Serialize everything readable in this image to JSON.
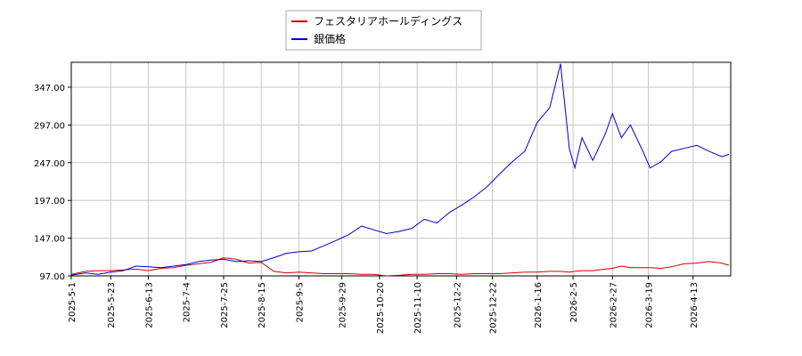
{
  "chart_data": {
    "type": "line",
    "x": [
      "2025-05-01",
      "2025-05-09",
      "2025-05-16",
      "2025-05-23",
      "2025-05-30",
      "2025-06-06",
      "2025-06-13",
      "2025-06-20",
      "2025-06-27",
      "2025-07-04",
      "2025-07-11",
      "2025-07-18",
      "2025-07-25",
      "2025-08-01",
      "2025-08-08",
      "2025-08-15",
      "2025-08-22",
      "2025-08-29",
      "2025-09-05",
      "2025-09-12",
      "2025-09-19",
      "2025-09-26",
      "2025-10-03",
      "2025-10-10",
      "2025-10-17",
      "2025-10-24",
      "2025-10-31",
      "2025-11-07",
      "2025-11-14",
      "2025-11-21",
      "2025-11-28",
      "2025-12-05",
      "2025-12-12",
      "2025-12-19",
      "2025-12-26",
      "2026-01-02",
      "2026-01-09",
      "2026-01-16",
      "2026-01-23",
      "2026-01-29",
      "2026-02-03",
      "2026-02-06",
      "2026-02-10",
      "2026-02-16",
      "2026-02-23",
      "2026-02-27",
      "2026-03-04",
      "2026-03-09",
      "2026-03-16",
      "2026-03-20",
      "2026-03-26",
      "2026-04-01",
      "2026-04-08",
      "2026-04-15",
      "2026-04-22",
      "2026-04-29",
      "2026-05-03"
    ],
    "series": [
      {
        "name": "フェスタリアホールディングス",
        "color": "#cc0000",
        "values": [
          99,
          103,
          104,
          104,
          105,
          106,
          104,
          107,
          108,
          111,
          113,
          115,
          121,
          119,
          114,
          115,
          103,
          101,
          102,
          101,
          100,
          100,
          100,
          99,
          99,
          97,
          98,
          99,
          99,
          100,
          100,
          99,
          100,
          100,
          100,
          101,
          102,
          102,
          103,
          103,
          102,
          103,
          104,
          104,
          106,
          107,
          110,
          108,
          108,
          108,
          107,
          109,
          113,
          114,
          116,
          114,
          111
        ]
      },
      {
        "name": "銀価格",
        "color": "#0000cc",
        "values": [
          98,
          101,
          99,
          102,
          104,
          110,
          109,
          108,
          110,
          112,
          116,
          118,
          119,
          116,
          117,
          116,
          121,
          127,
          129,
          130,
          137,
          144,
          152,
          163,
          158,
          153,
          156,
          160,
          172,
          167,
          181,
          191,
          202,
          215,
          232,
          248,
          262,
          300,
          320,
          378,
          265,
          240,
          280,
          250,
          285,
          312,
          280,
          297,
          262,
          240,
          248,
          262,
          266,
          270,
          262,
          255,
          258
        ]
      }
    ],
    "xlim": [
      "2025-05-01",
      "2026-05-04"
    ],
    "xticks": [
      {
        "value": "2025-05-01",
        "label": "2025-5-1"
      },
      {
        "value": "2025-05-23",
        "label": "2025-5-23"
      },
      {
        "value": "2025-06-13",
        "label": "2025-6-13"
      },
      {
        "value": "2025-07-04",
        "label": "2025-7-4"
      },
      {
        "value": "2025-07-25",
        "label": "2025-7-25"
      },
      {
        "value": "2025-08-15",
        "label": "2025-8-15"
      },
      {
        "value": "2025-09-05",
        "label": "2025-9-5"
      },
      {
        "value": "2025-09-29",
        "label": "2025-9-29"
      },
      {
        "value": "2025-10-20",
        "label": "2025-10-20"
      },
      {
        "value": "2025-11-10",
        "label": "2025-11-10"
      },
      {
        "value": "2025-12-02",
        "label": "2025-12-2"
      },
      {
        "value": "2025-12-22",
        "label": "2025-12-22"
      },
      {
        "value": "2026-01-16",
        "label": "2026-1-16"
      },
      {
        "value": "2026-02-05",
        "label": "2026-2-5"
      },
      {
        "value": "2026-02-27",
        "label": "2026-2-27"
      },
      {
        "value": "2026-03-19",
        "label": "2026-3-19"
      },
      {
        "value": "2026-04-13",
        "label": "2026-4-13"
      }
    ],
    "ylim": [
      97,
      380
    ],
    "yticks": [
      {
        "value": 97,
        "label": "97.00"
      },
      {
        "value": 147,
        "label": "147.00"
      },
      {
        "value": 197,
        "label": "197.00"
      },
      {
        "value": 247,
        "label": "247.00"
      },
      {
        "value": 297,
        "label": "297.00"
      },
      {
        "value": 347,
        "label": "347.00"
      }
    ],
    "grid": true,
    "legend": "top"
  }
}
